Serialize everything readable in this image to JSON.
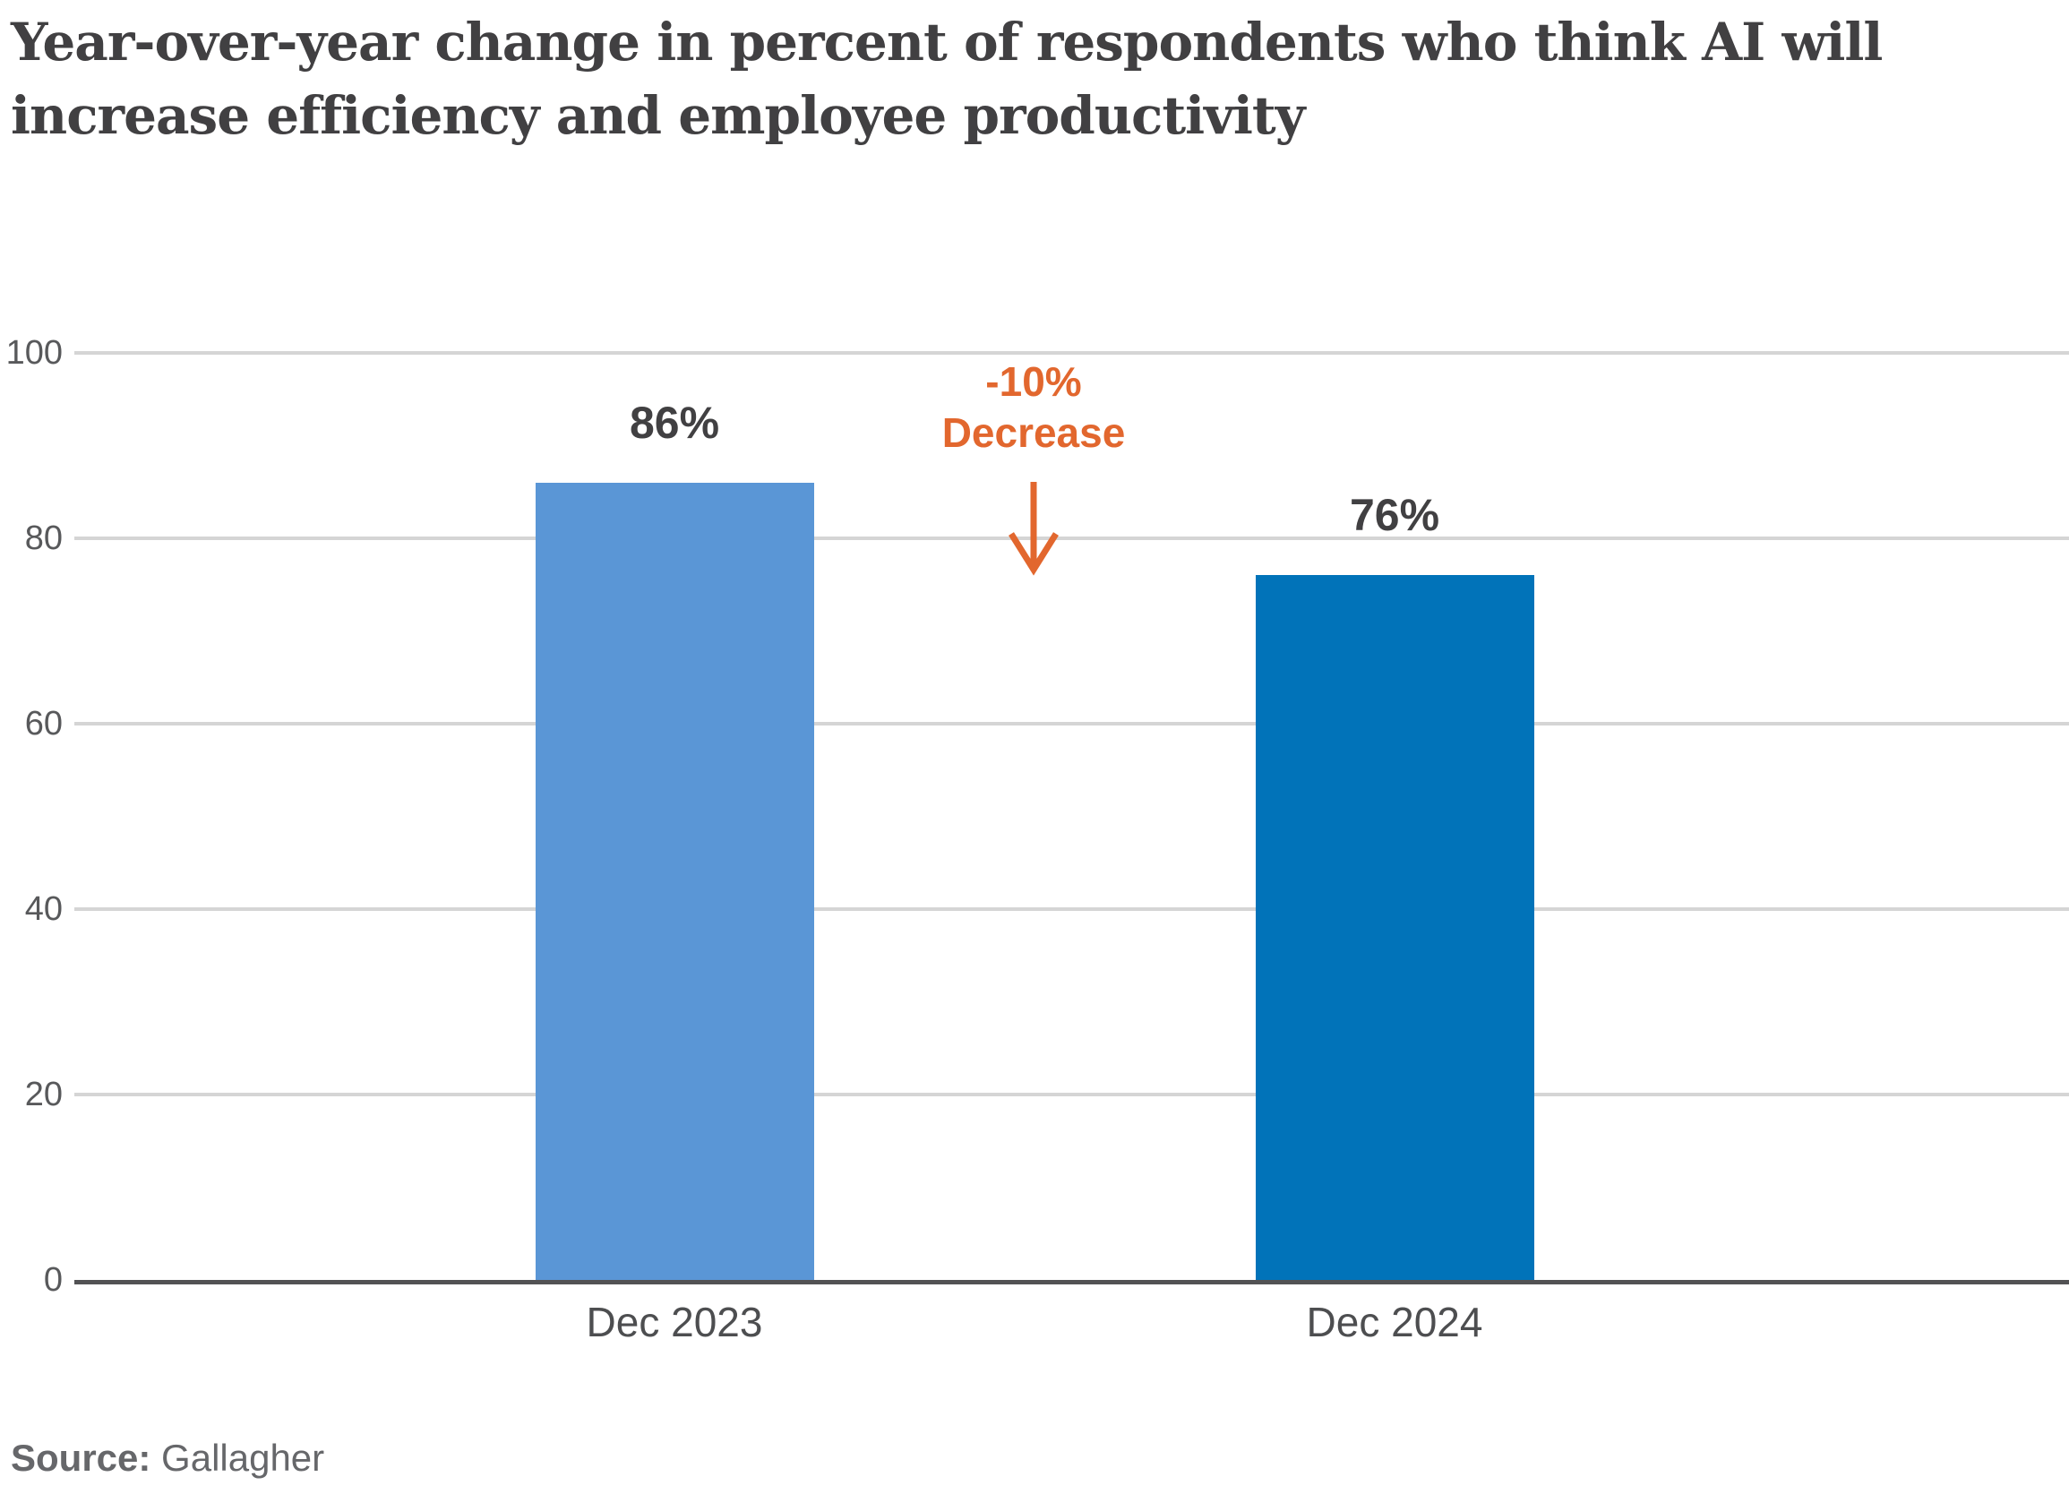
{
  "title_lines": [
    "Year-over-year change in percent of respondents who think AI will",
    "increase efficiency and employee productivity"
  ],
  "chart_data": {
    "type": "bar",
    "title": "Year-over-year change in percent of respondents who think AI will increase efficiency and employee productivity",
    "categories": [
      "Dec 2023",
      "Dec 2024"
    ],
    "values": [
      86,
      76
    ],
    "value_labels": [
      "86%",
      "76%"
    ],
    "bar_colors": [
      "#5A96D6",
      "#0173B9"
    ],
    "xlabel": "",
    "ylabel": "",
    "ylim": [
      0,
      100
    ],
    "yticks": [
      0,
      20,
      40,
      60,
      80,
      100
    ],
    "grid": "horizontal",
    "legend": "none",
    "annotation": {
      "line1": "-10%",
      "line2": "Decrease",
      "color": "#E2672E",
      "arrow": "down",
      "position": "between the two bars, above the 80 gridline"
    },
    "source": {
      "label": "Source:",
      "value": "Gallagher"
    }
  },
  "colors": {
    "background": "#FFFFFF",
    "title_text": "#414042",
    "axis_text": "#58595B",
    "gridline": "#D5D5D5",
    "axis_line": "#525254",
    "source_text": "#66676A",
    "annotation_orange": "#E2672E",
    "bar_dec_2023": "#5A96D6",
    "bar_dec_2024": "#0173B9"
  }
}
